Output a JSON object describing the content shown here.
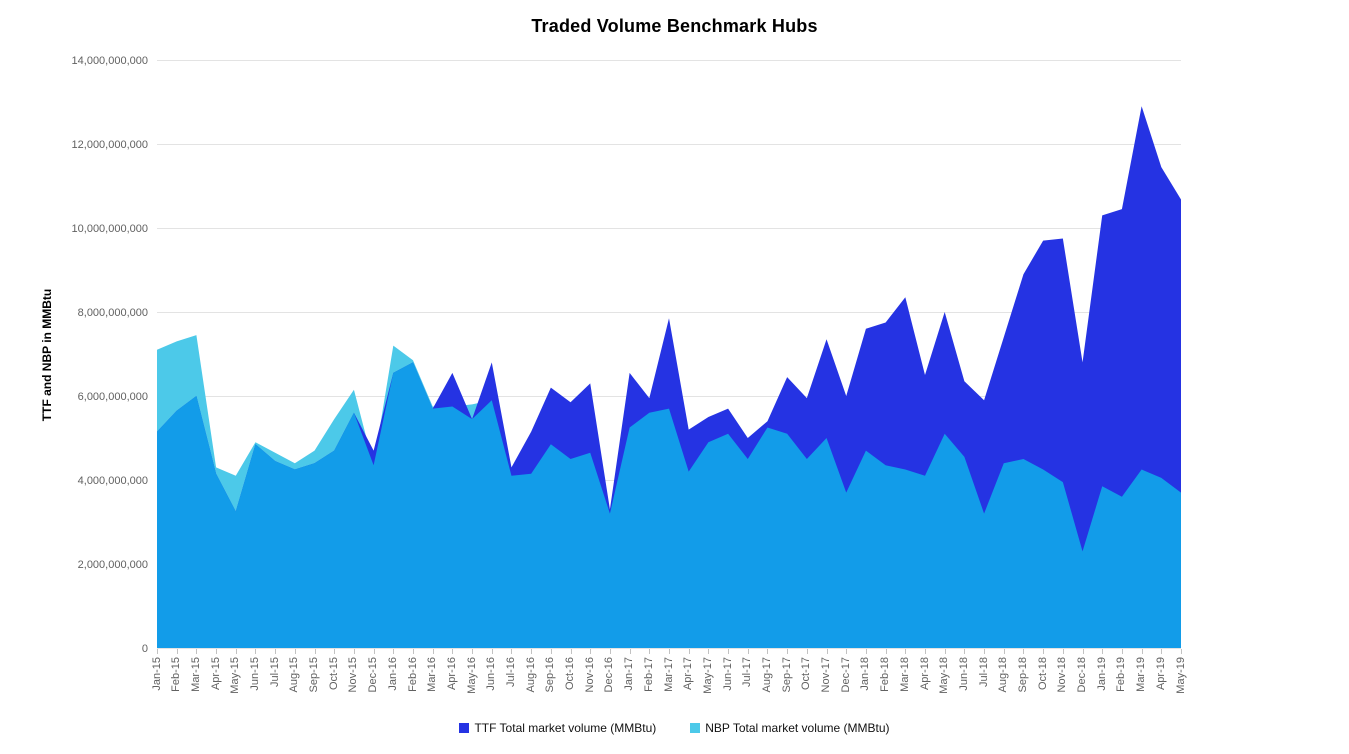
{
  "title": "Traded Volume Benchmark Hubs",
  "y_axis": {
    "title": "TTF and NBP in MMBtu",
    "ticks": [
      {
        "value": 0,
        "label": "0"
      },
      {
        "value": 2000000000,
        "label": "2,000,000,000"
      },
      {
        "value": 4000000000,
        "label": "4,000,000,000"
      },
      {
        "value": 6000000000,
        "label": "6,000,000,000"
      },
      {
        "value": 8000000000,
        "label": "8,000,000,000"
      },
      {
        "value": 10000000000,
        "label": "10,000,000,000"
      },
      {
        "value": 12000000000,
        "label": "12,000,000,000"
      },
      {
        "value": 14000000000,
        "label": "14,000,000,000"
      }
    ]
  },
  "colors": {
    "ttf": "#2533e3",
    "nbp": "#4cc9e9",
    "overlap": "#129ce9",
    "gridline": "#e3e3e3",
    "axis_text": "#616161"
  },
  "chart_data": {
    "type": "area",
    "title": "Traded Volume Benchmark Hubs",
    "ylabel": "TTF and NBP in MMBtu",
    "xlabel": "",
    "ylim": [
      0,
      14000000000
    ],
    "grid": true,
    "legend_position": "bottom",
    "x": [
      "Jan-15",
      "Feb-15",
      "Mar-15",
      "Apr-15",
      "May-15",
      "Jun-15",
      "Jul-15",
      "Aug-15",
      "Sep-15",
      "Oct-15",
      "Nov-15",
      "Dec-15",
      "Jan-16",
      "Feb-16",
      "Mar-16",
      "Apr-16",
      "May-16",
      "Jun-16",
      "Jul-16",
      "Aug-16",
      "Sep-16",
      "Oct-16",
      "Nov-16",
      "Dec-16",
      "Jan-17",
      "Feb-17",
      "Mar-17",
      "Apr-17",
      "May-17",
      "Jun-17",
      "Jul-17",
      "Aug-17",
      "Sep-17",
      "Oct-17",
      "Nov-17",
      "Dec-17",
      "Jan-18",
      "Feb-18",
      "Mar-18",
      "Apr-18",
      "May-18",
      "Jun-18",
      "Jul-18",
      "Aug-18",
      "Sep-18",
      "Oct-18",
      "Nov-18",
      "Dec-18",
      "Jan-19",
      "Feb-19",
      "Mar-19",
      "Apr-19",
      "May-19"
    ],
    "series": [
      {
        "name": "TTF Total market volume (MMBtu)",
        "color": "#2533e3",
        "values": [
          5150000000,
          5650000000,
          6000000000,
          4150000000,
          3250000000,
          4850000000,
          4450000000,
          4250000000,
          4400000000,
          4700000000,
          5600000000,
          4700000000,
          6550000000,
          6800000000,
          5700000000,
          6550000000,
          5450000000,
          6800000000,
          4300000000,
          5150000000,
          6200000000,
          5850000000,
          6300000000,
          3300000000,
          6550000000,
          5950000000,
          7850000000,
          5200000000,
          5500000000,
          5700000000,
          5000000000,
          5400000000,
          6450000000,
          5950000000,
          7350000000,
          6000000000,
          7600000000,
          7750000000,
          8350000000,
          6500000000,
          8000000000,
          6350000000,
          5900000000,
          7400000000,
          8900000000,
          9700000000,
          9750000000,
          6800000000,
          10300000000,
          10450000000,
          12900000000,
          11450000000,
          10680000000
        ]
      },
      {
        "name": "NBP Total market volume (MMBtu)",
        "color": "#4cc9e9",
        "values": [
          7100000000,
          7300000000,
          7450000000,
          4300000000,
          4100000000,
          4900000000,
          4650000000,
          4400000000,
          4700000000,
          5450000000,
          6150000000,
          4350000000,
          7200000000,
          6850000000,
          5750000000,
          5750000000,
          5800000000,
          5900000000,
          4100000000,
          4150000000,
          4850000000,
          4500000000,
          4650000000,
          3200000000,
          5250000000,
          5600000000,
          5700000000,
          4200000000,
          4900000000,
          5100000000,
          4500000000,
          5250000000,
          5100000000,
          4500000000,
          5000000000,
          3700000000,
          4700000000,
          4350000000,
          4250000000,
          4100000000,
          5100000000,
          4550000000,
          3200000000,
          4400000000,
          4500000000,
          4250000000,
          3950000000,
          2300000000,
          3850000000,
          3600000000,
          4250000000,
          4050000000,
          3700000000
        ]
      }
    ],
    "overlap_color": "#129ce9"
  },
  "legend": [
    {
      "label": "TTF Total market volume (MMBtu)",
      "color": "#2533e3"
    },
    {
      "label": "NBP Total market volume (MMBtu)",
      "color": "#4cc9e9"
    }
  ]
}
